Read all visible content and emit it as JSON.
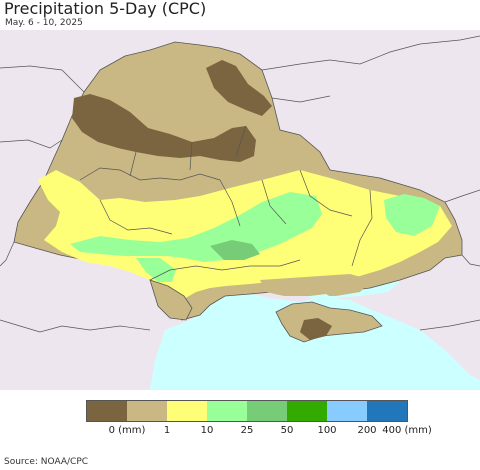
{
  "header": {
    "title": "Precipitation 5-Day (CPC)",
    "date_range": "May. 6 - 10, 2025"
  },
  "map": {
    "background_land": "#ede6ee",
    "sea_color": "#ccffff",
    "border_color": "#555555"
  },
  "legend": {
    "labels": [
      "0 (mm)",
      "1",
      "10",
      "25",
      "50",
      "100",
      "200",
      "400 (mm)"
    ],
    "colors": [
      "#7b6440",
      "#c9b884",
      "#ffff77",
      "#99ff99",
      "#77cc77",
      "#33aa00",
      "#88ccff",
      "#2277bb"
    ]
  },
  "footer": {
    "source": "Source: NOAA/CPC"
  }
}
